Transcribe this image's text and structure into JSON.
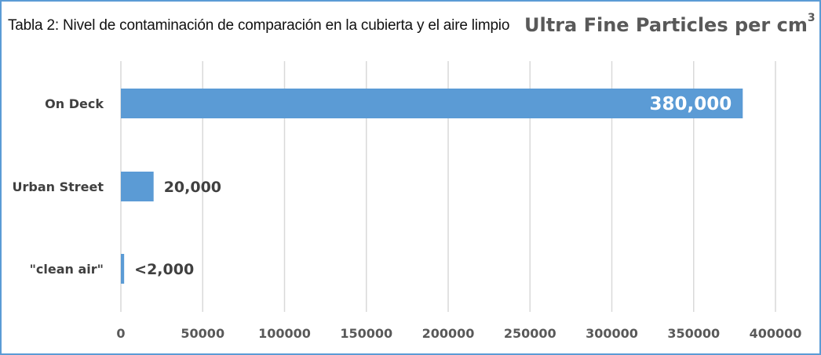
{
  "caption": "Tabla 2: Nivel de contaminación de comparación en la cubierta y el aire limpio",
  "chart_data": {
    "type": "bar",
    "orientation": "horizontal",
    "title": "Ultra Fine Particles per cm",
    "title_superscript": "3",
    "categories": [
      "On Deck",
      "Urban Street",
      "\"clean air\""
    ],
    "values": [
      380000,
      20000,
      2000
    ],
    "data_labels": [
      "380,000",
      "20,000",
      "<2,000"
    ],
    "xlim": [
      0,
      400000
    ],
    "x_ticks": [
      0,
      50000,
      100000,
      150000,
      200000,
      250000,
      300000,
      350000,
      400000
    ],
    "x_tick_labels": [
      "0",
      "50000",
      "100000",
      "150000",
      "200000",
      "250000",
      "300000",
      "350000",
      "400000"
    ],
    "grid": "vertical",
    "legend": "none",
    "bar_color": "#5b9bd5",
    "grid_color": "#d9d9d9",
    "border_color": "#5b9bd5"
  }
}
